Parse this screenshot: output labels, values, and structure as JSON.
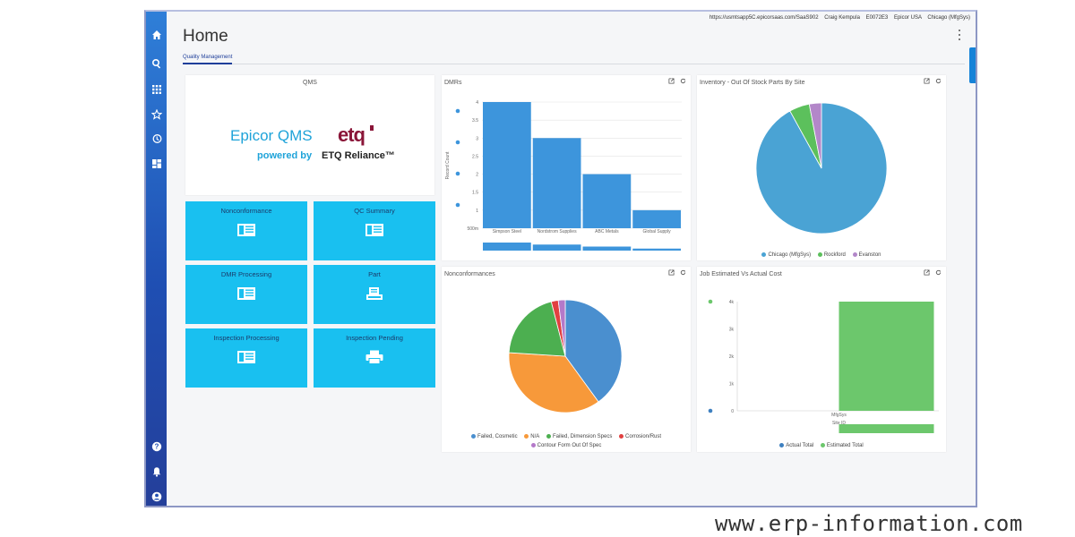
{
  "topbar": {
    "url": "https://usmtsapp5C.epicorsaas.com/SaaS902",
    "user": "Craig Kempula",
    "code": "E0072E3",
    "company": "Epicor USA",
    "site": "Chicago (MfgSys)"
  },
  "header": {
    "title": "Home"
  },
  "tabs": [
    {
      "label": "Quality Management"
    }
  ],
  "sidebar": {
    "icons": [
      "home-icon",
      "search-icon",
      "apps-grid-icon",
      "star-icon",
      "history-icon",
      "dashboard-icon",
      "help-icon",
      "bell-icon",
      "user-icon"
    ]
  },
  "qms": {
    "title": "QMS",
    "logo_text": "Epicor QMS",
    "etq": "etq",
    "powered_by": "powered by",
    "reliance": "ETQ Reliance™"
  },
  "tiles": [
    {
      "label": "Nonconformance",
      "icon": "list-icon"
    },
    {
      "label": "QC Summary",
      "icon": "list-icon"
    },
    {
      "label": "DMR Processing",
      "icon": "list-icon"
    },
    {
      "label": "Part",
      "icon": "part-icon"
    },
    {
      "label": "Inspection Processing",
      "icon": "list-icon"
    },
    {
      "label": "Inspection Pending",
      "icon": "printer-icon"
    }
  ],
  "colors": {
    "rail": "#1f4fb3",
    "tile": "#19c0f0",
    "bar": "#3d95dc",
    "accent": "#1f3f9a"
  },
  "dmrs": {
    "title": "DMRs",
    "chart_data": {
      "type": "bar",
      "categories": [
        "Simpson Steel",
        "Nordstrom Supplies",
        "ABC Metals",
        "Global Supply"
      ],
      "values": [
        4,
        3,
        2,
        1
      ],
      "ylabel": "Record Count",
      "yticks": [
        "4",
        "3.5",
        "3",
        "2.5",
        "2",
        "1.5",
        "1",
        "500m"
      ],
      "ylim": [
        0.5,
        4
      ]
    }
  },
  "inventory": {
    "title": "Inventory - Out Of Stock Parts By Site",
    "chart_data": {
      "type": "pie",
      "labels": [
        "Chicago (MfgSys)",
        "Rockford",
        "Evanston"
      ],
      "values": [
        92,
        5,
        3
      ],
      "colors": [
        "#4aa3d4",
        "#5cc05c",
        "#b387c9"
      ]
    }
  },
  "nonconformances": {
    "title": "Nonconformances",
    "chart_data": {
      "type": "pie",
      "labels": [
        "Failed, Cosmetic",
        "N/A",
        "Failed, Dimension Specs",
        "Corrosion/Rust",
        "Contour Form Out Of Spec"
      ],
      "values": [
        40,
        36,
        20,
        2,
        2
      ],
      "colors": [
        "#4a8fcf",
        "#f7993a",
        "#4caf50",
        "#e04040",
        "#b479c9"
      ]
    }
  },
  "job_cost": {
    "title": "Job Estimated Vs Actual Cost",
    "chart_data": {
      "type": "bar",
      "categories": [
        "MfgSys"
      ],
      "series": [
        {
          "name": "Actual Total",
          "values": [
            0
          ]
        },
        {
          "name": "Estimated Total",
          "values": [
            4
          ]
        }
      ],
      "yticks": [
        "4k",
        "3k",
        "2k",
        "1k",
        "0"
      ],
      "xlabel": "Site ID",
      "ylim": [
        0,
        4
      ],
      "series_colors": [
        "#3e80c0",
        "#6cc76c"
      ]
    }
  },
  "watermark": "www.erp-information.com"
}
